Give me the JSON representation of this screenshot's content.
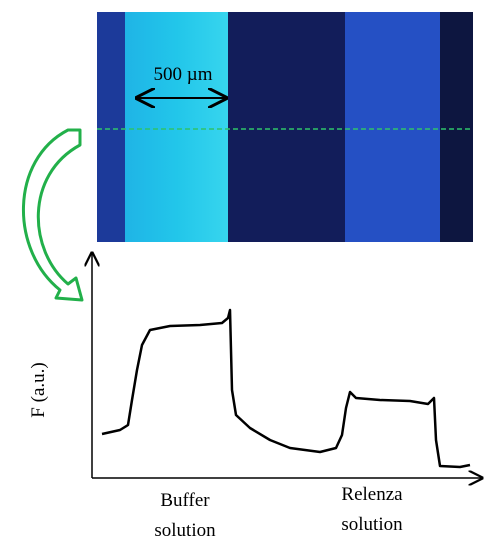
{
  "image": {
    "scale_label": "500 µm"
  },
  "plot": {
    "y_axis_label": "F (a.u.)",
    "regions": [
      {
        "line1": "Buffer",
        "line2": "solution"
      },
      {
        "line1": "Relenza",
        "line2": "solution"
      }
    ]
  }
}
